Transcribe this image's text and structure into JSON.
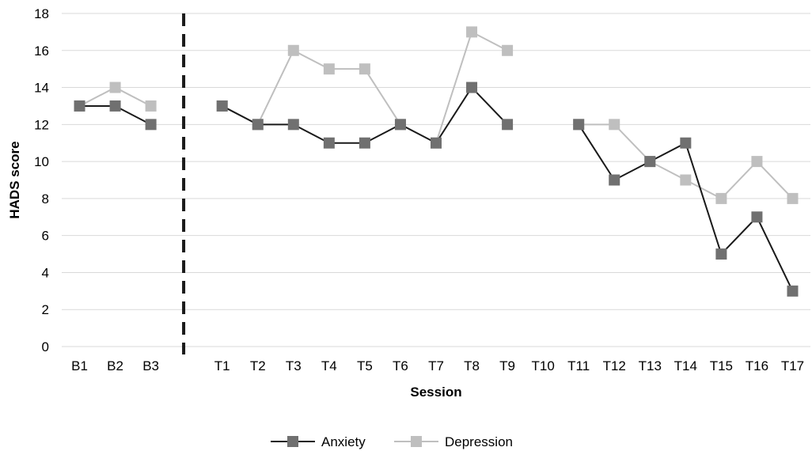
{
  "chart_data": {
    "type": "line",
    "xlabel": "Session",
    "ylabel": "HADS score",
    "ylim": [
      0,
      18
    ],
    "yticks": [
      0,
      2,
      4,
      6,
      8,
      10,
      12,
      14,
      16,
      18
    ],
    "grid": true,
    "legend_position": "bottom-center",
    "phase_change_after": "B3",
    "categories": [
      "B1",
      "B2",
      "B3",
      "",
      "T1",
      "T2",
      "T3",
      "T4",
      "T5",
      "T6",
      "T7",
      "T8",
      "T9",
      "T10",
      "T11",
      "T12",
      "T13",
      "T14",
      "T15",
      "T16",
      "T17"
    ],
    "series": [
      {
        "name": "Anxiety",
        "color": "#707070",
        "line_color": "#1a1a1a",
        "values": [
          13,
          13,
          12,
          null,
          13,
          12,
          12,
          11,
          11,
          12,
          11,
          14,
          12,
          null,
          12,
          9,
          10,
          11,
          5,
          7,
          3
        ]
      },
      {
        "name": "Depression",
        "color": "#bfbfbf",
        "line_color": "#bfbfbf",
        "values": [
          13,
          14,
          13,
          null,
          13,
          12,
          16,
          15,
          15,
          12,
          11,
          17,
          16,
          null,
          12,
          12,
          10,
          9,
          8,
          10,
          8
        ]
      }
    ]
  }
}
